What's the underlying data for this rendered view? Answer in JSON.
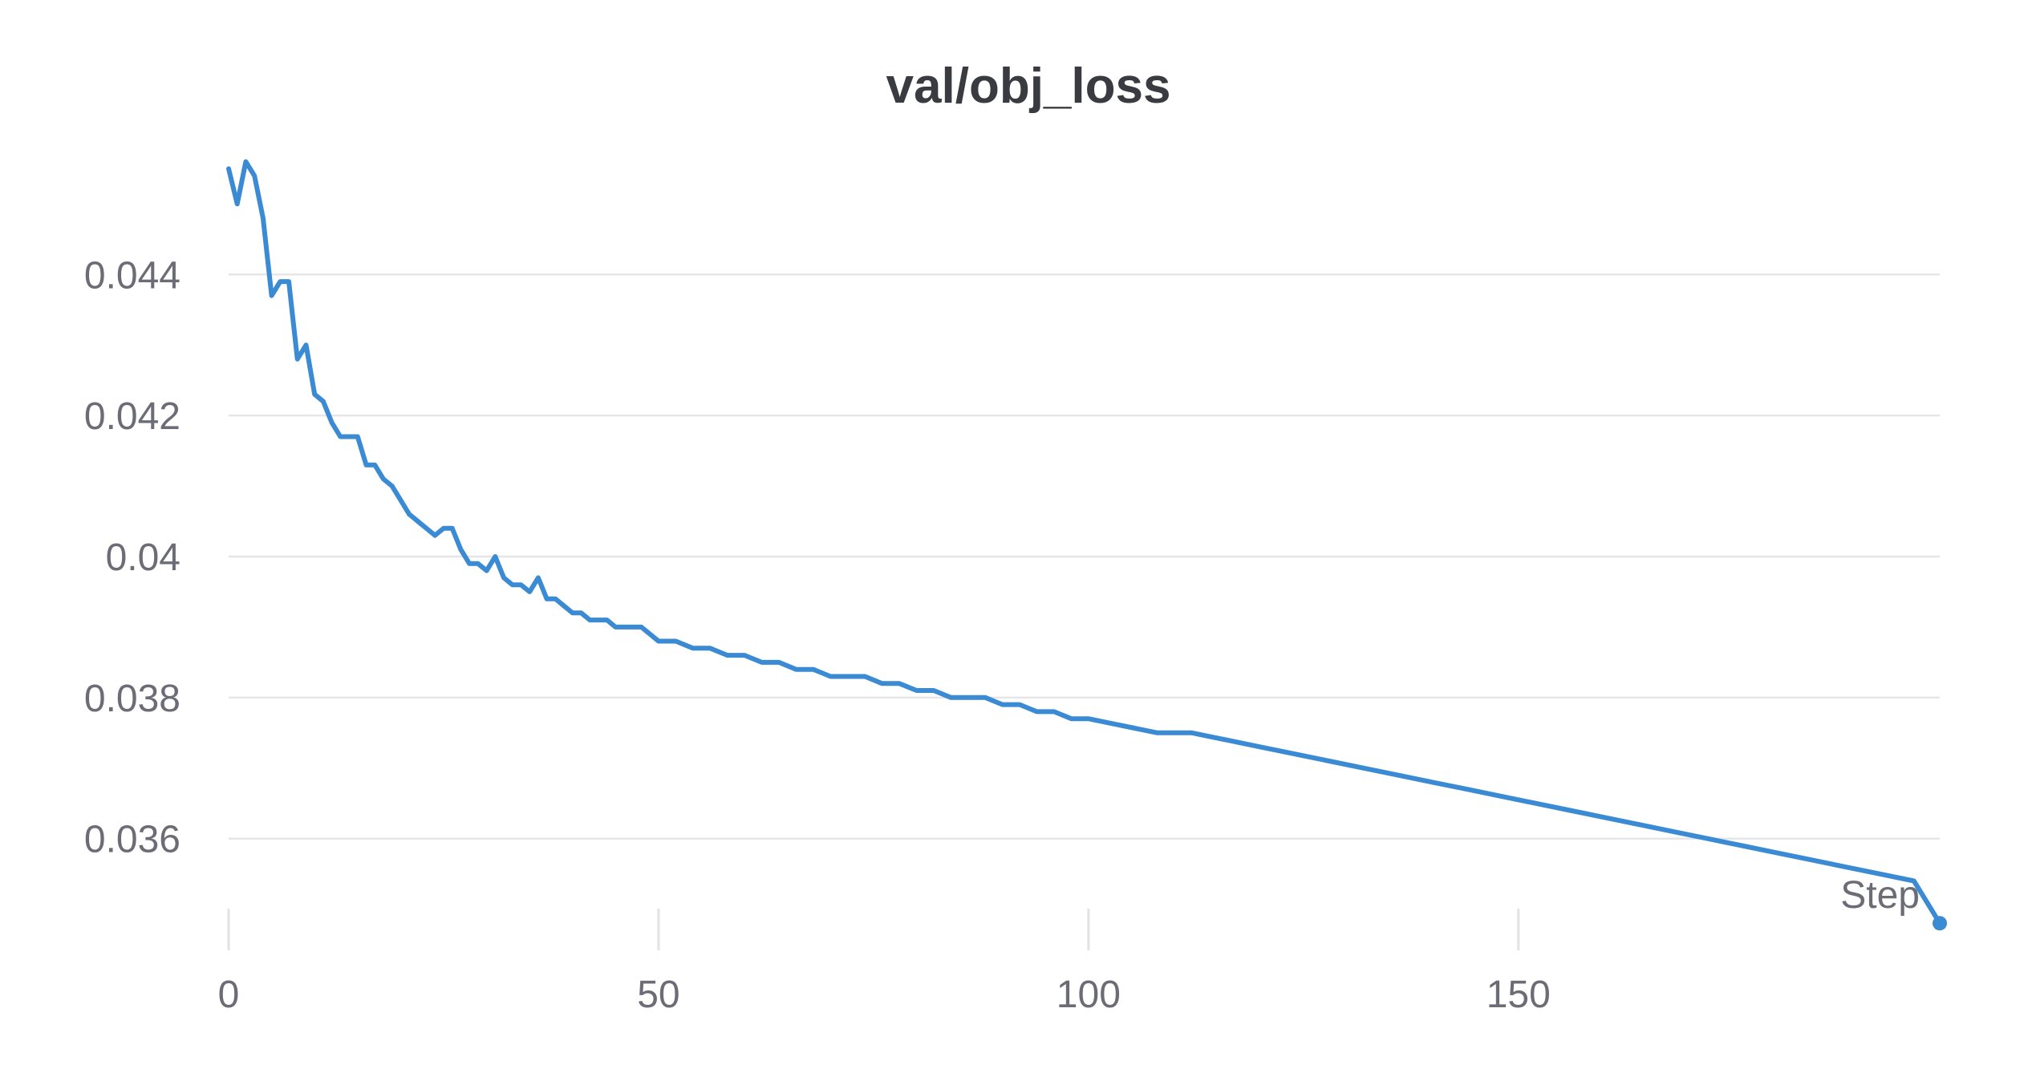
{
  "chart_data": {
    "type": "line",
    "title": "val/obj_loss",
    "xlabel": "Step",
    "ylabel": "",
    "xlim": [
      0,
      200
    ],
    "ylim": [
      0.0347,
      0.0458
    ],
    "x_ticks": [
      0,
      50,
      100,
      150
    ],
    "x_tick_labels": [
      "0",
      "50",
      "100",
      "150"
    ],
    "y_ticks": [
      0.036,
      0.038,
      0.04,
      0.042,
      0.044
    ],
    "y_tick_labels": [
      "0.036",
      "0.038",
      "0.04",
      "0.042",
      "0.044"
    ],
    "grid": "horizontal",
    "legend": "none",
    "series": [
      {
        "color": "#3a8ad4",
        "last_point_marker": true,
        "x": [
          0,
          1,
          2,
          3,
          4,
          5,
          6,
          7,
          8,
          9,
          10,
          11,
          12,
          13,
          14,
          15,
          16,
          17,
          18,
          19,
          20,
          21,
          22,
          23,
          24,
          25,
          26,
          27,
          28,
          29,
          30,
          31,
          32,
          33,
          34,
          35,
          36,
          37,
          38,
          39,
          40,
          41,
          42,
          43,
          44,
          45,
          46,
          47,
          48,
          49,
          50,
          52,
          54,
          56,
          58,
          60,
          62,
          64,
          66,
          68,
          70,
          72,
          74,
          76,
          78,
          80,
          82,
          84,
          86,
          88,
          90,
          92,
          94,
          96,
          98,
          100,
          104,
          108,
          112,
          116,
          120,
          124,
          128,
          132,
          136,
          140,
          144,
          148,
          152,
          156,
          160,
          164,
          168,
          172,
          176,
          180,
          184,
          188,
          192,
          196,
          199
        ],
        "y": [
          0.0455,
          0.045,
          0.0456,
          0.0454,
          0.0448,
          0.0437,
          0.0439,
          0.0439,
          0.0428,
          0.043,
          0.0423,
          0.0422,
          0.0419,
          0.0417,
          0.0417,
          0.0417,
          0.0413,
          0.0413,
          0.0411,
          0.041,
          0.0408,
          0.0406,
          0.0405,
          0.0404,
          0.0403,
          0.0404,
          0.0404,
          0.0401,
          0.0399,
          0.0399,
          0.0398,
          0.04,
          0.0397,
          0.0396,
          0.0396,
          0.0395,
          0.0397,
          0.0394,
          0.0394,
          0.0393,
          0.0392,
          0.0392,
          0.0391,
          0.0391,
          0.0391,
          0.039,
          0.039,
          0.039,
          0.039,
          0.0389,
          0.0388,
          0.0388,
          0.0387,
          0.0387,
          0.0386,
          0.0386,
          0.0385,
          0.0385,
          0.0384,
          0.0384,
          0.0383,
          0.0383,
          0.0383,
          0.0382,
          0.0382,
          0.0381,
          0.0381,
          0.038,
          0.038,
          0.038,
          0.0379,
          0.0379,
          0.0378,
          0.0378,
          0.0377,
          0.0377,
          0.0376,
          0.0375,
          0.0375,
          0.0374,
          0.0373,
          0.0372,
          0.0371,
          0.037,
          0.0369,
          0.0368,
          0.0367,
          0.0366,
          0.0365,
          0.0364,
          0.0363,
          0.0362,
          0.0361,
          0.036,
          0.0359,
          0.0358,
          0.0357,
          0.0356,
          0.0355,
          0.0354,
          0.0348
        ]
      }
    ]
  }
}
